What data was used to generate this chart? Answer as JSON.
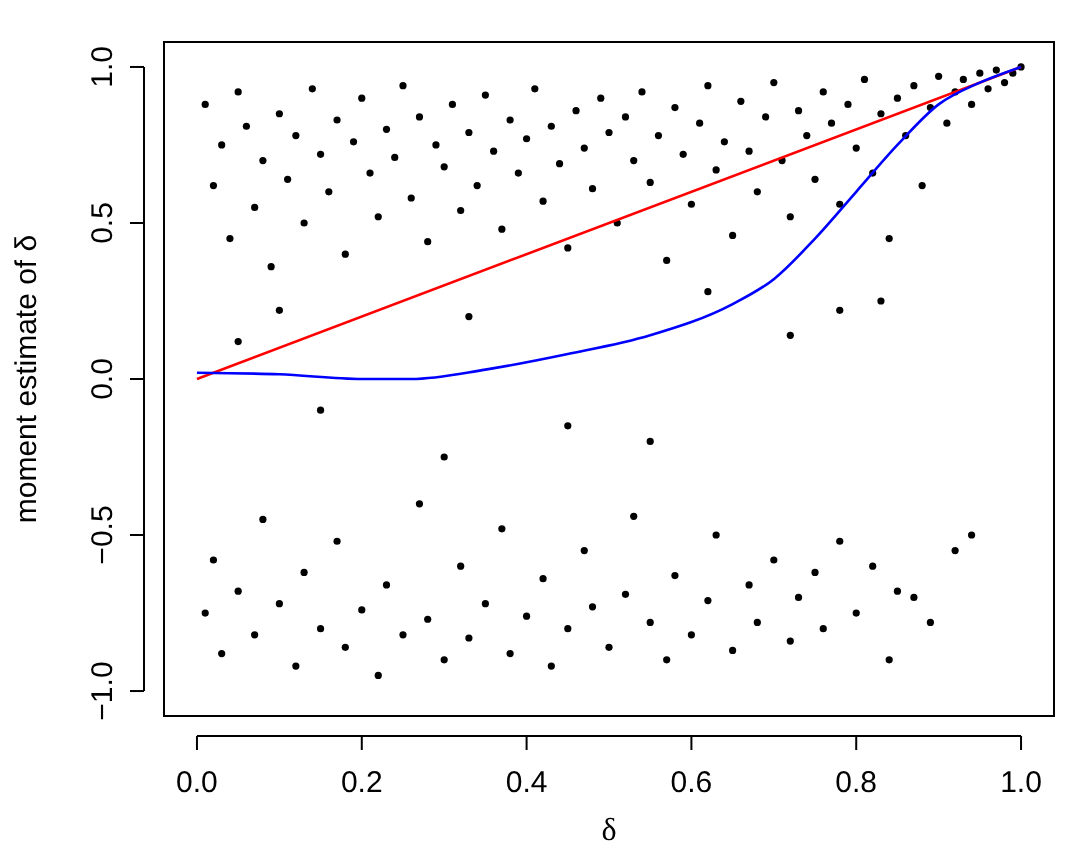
{
  "chart_data": {
    "type": "scatter",
    "xlabel": "δ",
    "ylabel": "moment estimate of δ",
    "xlim": [
      -0.04,
      1.04
    ],
    "ylim": [
      -1.08,
      1.08
    ],
    "xticks": [
      {
        "value": 0,
        "label": "0.0"
      },
      0.2,
      0.4,
      0.6,
      0.8,
      {
        "value": 1,
        "label": "1.0"
      }
    ],
    "yticks": [
      {
        "value": -1,
        "label": "−1.0"
      },
      {
        "value": -0.5,
        "label": "−0.5"
      },
      {
        "value": 0,
        "label": "0.0"
      },
      0.5,
      {
        "value": 1,
        "label": "1.0"
      }
    ],
    "grid": false,
    "series": [
      {
        "color": "#000000",
        "marker": "circle",
        "x": [
          0.01,
          0.02,
          0.03,
          0.04,
          0.05,
          0.06,
          0.07,
          0.08,
          0.09,
          0.1,
          0.11,
          0.12,
          0.13,
          0.14,
          0.15,
          0.16,
          0.17,
          0.18,
          0.19,
          0.2,
          0.21,
          0.22,
          0.23,
          0.24,
          0.25,
          0.26,
          0.27,
          0.28,
          0.29,
          0.3,
          0.31,
          0.32,
          0.33,
          0.34,
          0.35,
          0.36,
          0.37,
          0.38,
          0.39,
          0.4,
          0.41,
          0.42,
          0.43,
          0.44,
          0.45,
          0.46,
          0.47,
          0.48,
          0.49,
          0.5,
          0.51,
          0.52,
          0.53,
          0.54,
          0.55,
          0.56,
          0.57,
          0.58,
          0.59,
          0.6,
          0.61,
          0.62,
          0.63,
          0.64,
          0.65,
          0.66,
          0.67,
          0.68,
          0.69,
          0.7,
          0.71,
          0.72,
          0.73,
          0.74,
          0.75,
          0.76,
          0.77,
          0.78,
          0.79,
          0.8,
          0.81,
          0.82,
          0.83,
          0.84,
          0.85,
          0.86,
          0.87,
          0.88,
          0.89,
          0.9,
          0.91,
          0.92,
          0.93,
          0.94,
          0.95,
          0.96,
          0.97,
          0.98,
          0.99,
          1.0,
          0.05,
          0.15,
          0.33,
          0.45,
          0.55,
          0.62,
          0.72,
          0.78,
          0.83,
          0.3,
          0.1,
          0.01,
          0.02,
          0.03,
          0.05,
          0.07,
          0.08,
          0.1,
          0.12,
          0.13,
          0.15,
          0.17,
          0.18,
          0.2,
          0.22,
          0.23,
          0.25,
          0.27,
          0.28,
          0.3,
          0.32,
          0.33,
          0.35,
          0.37,
          0.38,
          0.4,
          0.42,
          0.43,
          0.45,
          0.47,
          0.48,
          0.5,
          0.52,
          0.53,
          0.55,
          0.57,
          0.58,
          0.6,
          0.62,
          0.63,
          0.65,
          0.67,
          0.68,
          0.7,
          0.72,
          0.73,
          0.75,
          0.76,
          0.78,
          0.8,
          0.82,
          0.84,
          0.85,
          0.87,
          0.89,
          0.92,
          0.94
        ],
        "values": [
          0.88,
          0.62,
          0.75,
          0.45,
          0.92,
          0.81,
          0.55,
          0.7,
          0.36,
          0.85,
          0.64,
          0.78,
          0.5,
          0.93,
          0.72,
          0.6,
          0.83,
          0.4,
          0.76,
          0.9,
          0.66,
          0.52,
          0.8,
          0.71,
          0.94,
          0.58,
          0.84,
          0.44,
          0.75,
          0.68,
          0.88,
          0.54,
          0.79,
          0.62,
          0.91,
          0.73,
          0.48,
          0.83,
          0.66,
          0.77,
          0.93,
          0.57,
          0.81,
          0.69,
          0.42,
          0.86,
          0.74,
          0.61,
          0.9,
          0.79,
          0.5,
          0.84,
          0.7,
          0.92,
          0.63,
          0.78,
          0.38,
          0.87,
          0.72,
          0.56,
          0.82,
          0.94,
          0.67,
          0.76,
          0.46,
          0.89,
          0.73,
          0.6,
          0.84,
          0.95,
          0.7,
          0.52,
          0.86,
          0.78,
          0.64,
          0.92,
          0.82,
          0.56,
          0.88,
          0.74,
          0.96,
          0.66,
          0.85,
          0.45,
          0.9,
          0.78,
          0.94,
          0.62,
          0.87,
          0.97,
          0.82,
          0.92,
          0.96,
          0.88,
          0.98,
          0.93,
          0.99,
          0.95,
          0.98,
          1.0,
          0.12,
          -0.1,
          0.2,
          -0.15,
          -0.2,
          0.28,
          0.14,
          0.22,
          0.25,
          -0.25,
          0.22,
          -0.75,
          -0.58,
          -0.88,
          -0.68,
          -0.82,
          -0.45,
          -0.72,
          -0.92,
          -0.62,
          -0.8,
          -0.52,
          -0.86,
          -0.74,
          -0.95,
          -0.66,
          -0.82,
          -0.4,
          -0.77,
          -0.9,
          -0.6,
          -0.83,
          -0.72,
          -0.48,
          -0.88,
          -0.76,
          -0.64,
          -0.92,
          -0.8,
          -0.55,
          -0.73,
          -0.86,
          -0.69,
          -0.44,
          -0.78,
          -0.9,
          -0.63,
          -0.82,
          -0.71,
          -0.5,
          -0.87,
          -0.66,
          -0.78,
          -0.58,
          -0.84,
          -0.7,
          -0.62,
          -0.8,
          -0.52,
          -0.75,
          -0.6,
          -0.9,
          -0.68,
          -0.7,
          -0.78,
          -0.55,
          -0.5
        ]
      },
      {
        "type": "line",
        "color": "#ff0000",
        "marker": "none",
        "x": [
          0,
          1
        ],
        "values": [
          0,
          1
        ]
      },
      {
        "type": "line",
        "color": "#0000ff",
        "marker": "none",
        "x": [
          0,
          0.1,
          0.2,
          0.26,
          0.35,
          0.45,
          0.55,
          0.65,
          0.7,
          0.75,
          0.8,
          0.85,
          0.9,
          0.95,
          1
        ],
        "values": [
          0.02,
          0.015,
          0.0,
          0.0,
          0.03,
          0.08,
          0.14,
          0.24,
          0.32,
          0.45,
          0.6,
          0.75,
          0.88,
          0.95,
          1
        ]
      }
    ]
  }
}
